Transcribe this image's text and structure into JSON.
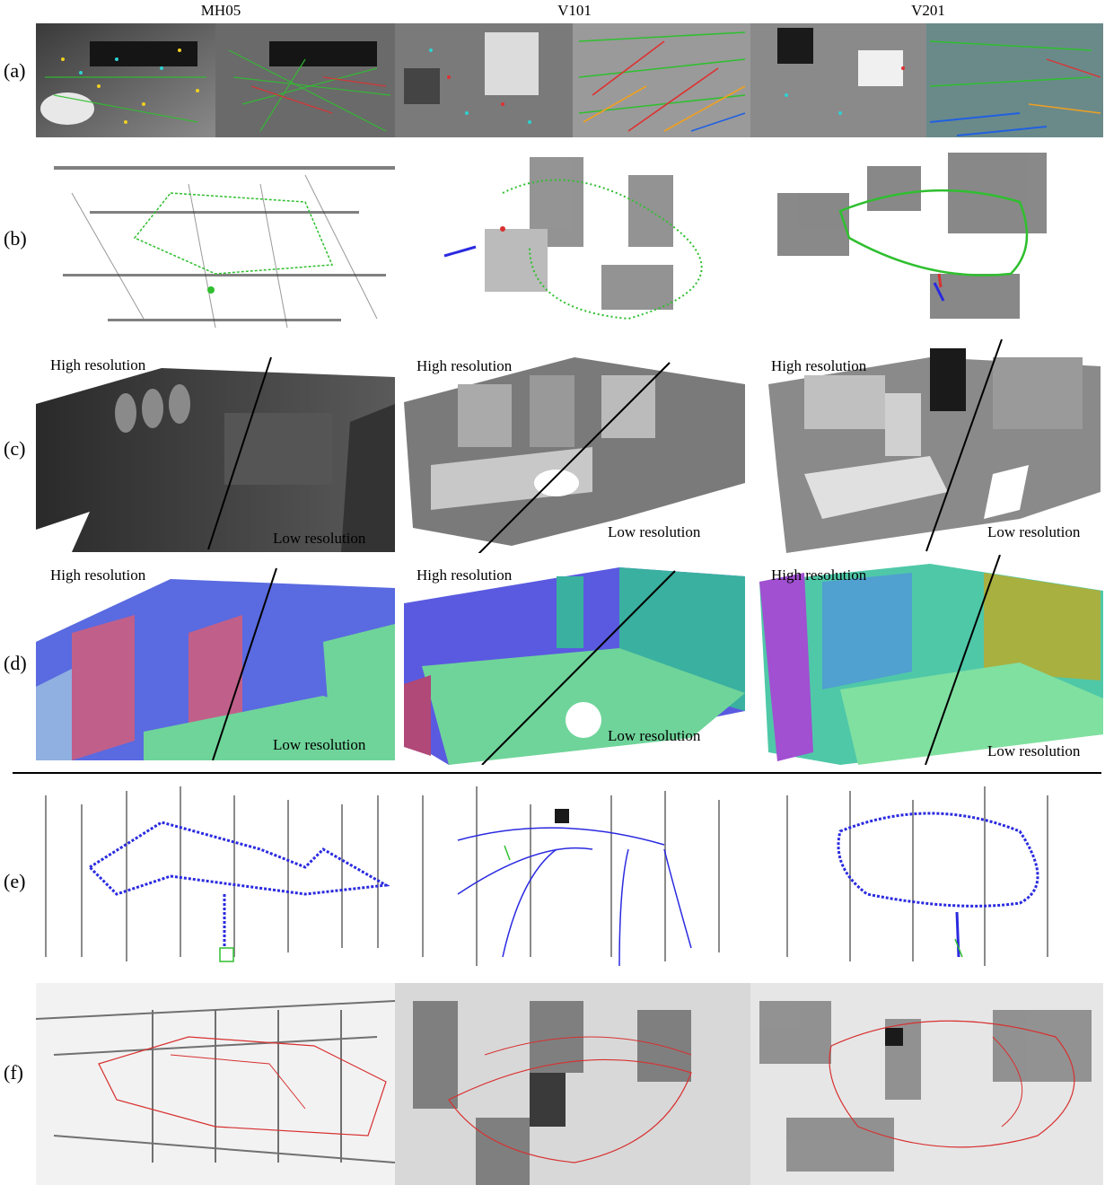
{
  "columns": [
    "MH05",
    "V101",
    "V201"
  ],
  "rows": [
    "(a)",
    "(b)",
    "(c)",
    "(d)",
    "(e)",
    "(f)"
  ],
  "overlay_labels": {
    "high": "High resolution",
    "low": "Low resolution"
  },
  "colors": {
    "trajectory_green": "#2fbf2f",
    "keyframe_blue": "#2a2ae0",
    "trajectory_red": "#d83030",
    "normal_purple": "#6a5ae0",
    "normal_green": "#6fd49a",
    "normal_pink": "#c0608a",
    "point_black": "#1a1a1a"
  }
}
